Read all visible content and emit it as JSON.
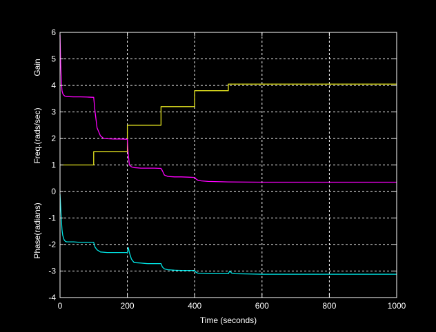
{
  "chart_data": {
    "type": "line",
    "title": "",
    "xlabel": "Time (seconds)",
    "ylabel_segments": [
      "Phase(radians)",
      "Freq.(rads/sec)",
      "Gain"
    ],
    "xlim": [
      0,
      1000
    ],
    "ylim": [
      -4,
      6
    ],
    "x_ticks": [
      0,
      200,
      400,
      600,
      800,
      1000
    ],
    "y_ticks": [
      -4,
      -3,
      -2,
      -1,
      0,
      1,
      2,
      3,
      4,
      5,
      6
    ],
    "grid": true,
    "colors": {
      "background": "#000000",
      "axes": "#ffffff",
      "grid": "#ffffff",
      "gain": "#e8e820",
      "freq": "#ff00ff",
      "phase": "#00e5e5"
    },
    "series": [
      {
        "key": "gain",
        "x": [
          0,
          100,
          100,
          200,
          200,
          300,
          300,
          400,
          400,
          500,
          500,
          1000
        ],
        "y": [
          1.0,
          1.0,
          1.5,
          1.5,
          2.5,
          2.5,
          3.2,
          3.2,
          3.8,
          3.8,
          4.05,
          4.05
        ]
      },
      {
        "key": "freq",
        "x": [
          0,
          2,
          4,
          6,
          8,
          10,
          14,
          20,
          40,
          60,
          80,
          100,
          104,
          110,
          120,
          130,
          140,
          160,
          180,
          200,
          202,
          206,
          212,
          220,
          240,
          260,
          280,
          300,
          304,
          310,
          320,
          340,
          360,
          380,
          400,
          404,
          410,
          420,
          440,
          500,
          600,
          700,
          800,
          900,
          1000
        ],
        "y": [
          5.9,
          4.8,
          4.1,
          3.8,
          3.7,
          3.65,
          3.6,
          3.58,
          3.57,
          3.57,
          3.56,
          3.55,
          3.0,
          2.4,
          2.1,
          2.0,
          1.99,
          1.98,
          1.98,
          1.97,
          1.5,
          1.0,
          0.93,
          0.9,
          0.88,
          0.88,
          0.88,
          0.87,
          0.78,
          0.62,
          0.57,
          0.55,
          0.55,
          0.54,
          0.53,
          0.47,
          0.42,
          0.4,
          0.38,
          0.36,
          0.35,
          0.35,
          0.35,
          0.35,
          0.35
        ]
      },
      {
        "key": "phase",
        "x": [
          0,
          2,
          4,
          6,
          8,
          12,
          16,
          20,
          40,
          60,
          80,
          100,
          104,
          110,
          120,
          140,
          160,
          180,
          200,
          203,
          206,
          212,
          220,
          240,
          260,
          280,
          300,
          304,
          310,
          320,
          340,
          360,
          380,
          400,
          404,
          410,
          420,
          440,
          500,
          504,
          510,
          520,
          600,
          700,
          800,
          900,
          1000
        ],
        "y": [
          -0.1,
          -0.6,
          -1.1,
          -1.45,
          -1.65,
          -1.82,
          -1.88,
          -1.9,
          -1.9,
          -1.92,
          -1.92,
          -1.92,
          -2.1,
          -2.2,
          -2.28,
          -2.3,
          -2.3,
          -2.3,
          -2.3,
          -2.12,
          -2.3,
          -2.55,
          -2.68,
          -2.7,
          -2.72,
          -2.72,
          -2.72,
          -2.85,
          -2.92,
          -2.95,
          -2.97,
          -2.98,
          -2.98,
          -2.98,
          -3.05,
          -3.08,
          -3.08,
          -3.1,
          -3.1,
          -3.0,
          -3.08,
          -3.1,
          -3.12,
          -3.12,
          -3.12,
          -3.12,
          -3.12
        ]
      }
    ]
  }
}
